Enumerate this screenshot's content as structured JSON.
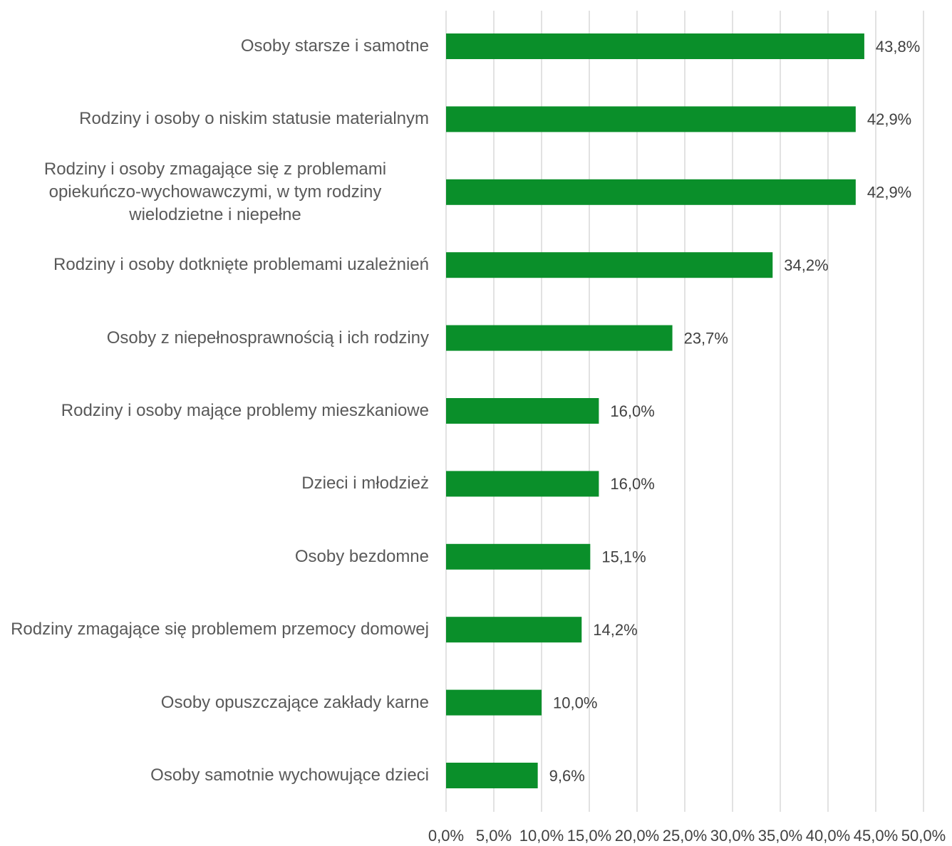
{
  "chart_data": {
    "type": "bar",
    "orientation": "horizontal",
    "categories": [
      "Osoby starsze i samotne",
      "Rodziny i osoby o niskim statusie materialnym",
      "Rodziny i osoby zmagające się z problemami opiekuńczo-wychowawczymi, w tym rodziny wielodzietne i niepełne",
      "Rodziny i osoby dotknięte problemami uzależnień",
      "Osoby z niepełnosprawnością i ich rodziny",
      "Rodziny i osoby mające problemy mieszkaniowe",
      "Dzieci i młodzież",
      "Osoby bezdomne",
      "Rodziny zmagające się problemem przemocy domowej",
      "Osoby opuszczające zakłady karne",
      "Osoby samotnie wychowujące dzieci"
    ],
    "values": [
      43.8,
      42.9,
      42.9,
      34.2,
      23.7,
      16.0,
      16.0,
      15.1,
      14.2,
      10.0,
      9.6
    ],
    "value_labels": [
      "43,8%",
      "42,9%",
      "42,9%",
      "34,2%",
      "23,7%",
      "16,0%",
      "16,0%",
      "15,1%",
      "14,2%",
      "10,0%",
      "9,6%"
    ],
    "color": "#0a8f2a",
    "xlim": [
      0,
      50
    ],
    "xticks": [
      {
        "value": 0,
        "label": "0,0%"
      },
      {
        "value": 5,
        "label": "5,0%"
      },
      {
        "value": 10,
        "label": "10,0%"
      },
      {
        "value": 15,
        "label": "15,0%"
      },
      {
        "value": 20,
        "label": "20,0%"
      },
      {
        "value": 25,
        "label": "25,0%"
      },
      {
        "value": 30,
        "label": "30,0%"
      },
      {
        "value": 35,
        "label": "35,0%"
      },
      {
        "value": 40,
        "label": "40,0%"
      },
      {
        "value": 45,
        "label": "45,0%"
      },
      {
        "value": 50,
        "label": "50,0%"
      }
    ],
    "grid": true
  }
}
